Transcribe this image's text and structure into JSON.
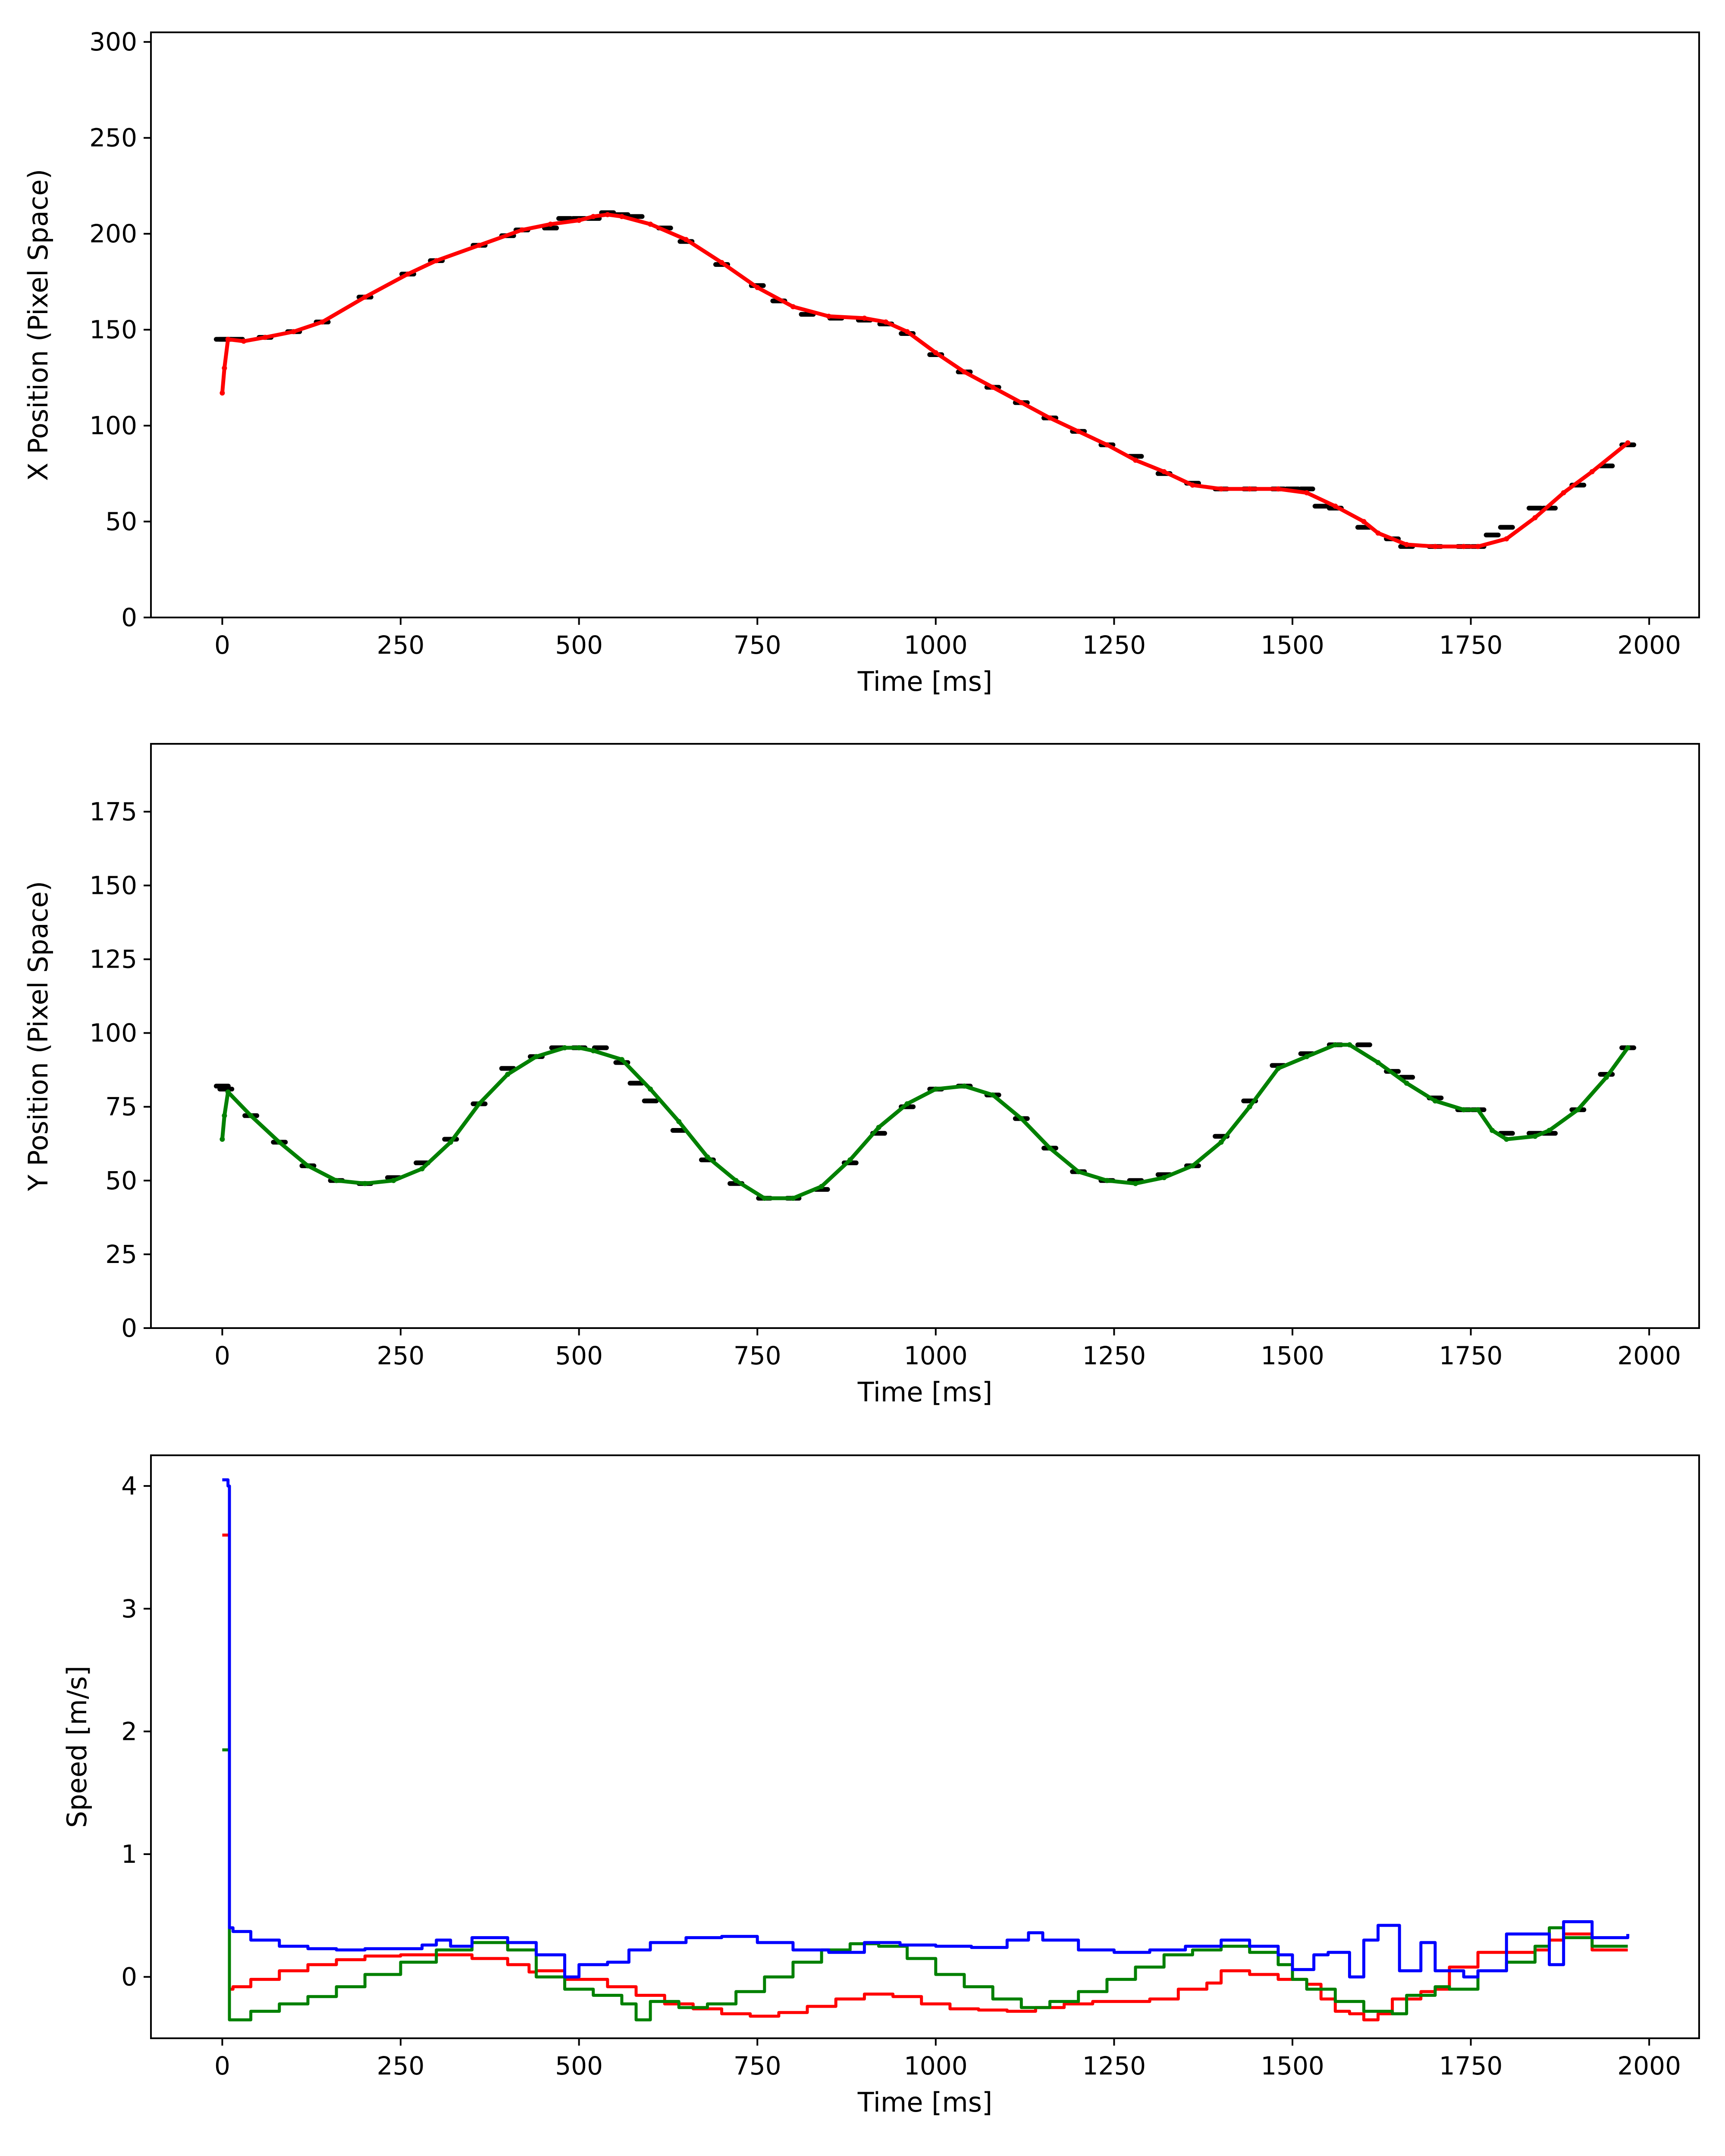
{
  "chart_data": [
    {
      "type": "line",
      "xlabel": "Time [ms]",
      "ylabel": "X Position (Pixel Space)",
      "xlim": [
        -100,
        2070
      ],
      "ylim": [
        0,
        305
      ],
      "xticks": [
        0,
        250,
        500,
        750,
        1000,
        1250,
        1500,
        1750,
        2000
      ],
      "yticks": [
        0,
        50,
        100,
        150,
        200,
        250,
        300
      ],
      "grid": false,
      "series": [
        {
          "color": "#000000",
          "style": "markers",
          "x": [
            0,
            5,
            20,
            60,
            100,
            140,
            200,
            260,
            300,
            360,
            400,
            420,
            460,
            480,
            500,
            520,
            540,
            560,
            580,
            620,
            650,
            700,
            750,
            780,
            820,
            860,
            900,
            930,
            960,
            1000,
            1040,
            1080,
            1120,
            1160,
            1200,
            1240,
            1280,
            1320,
            1360,
            1400,
            1440,
            1480,
            1500,
            1520,
            1540,
            1560,
            1600,
            1640,
            1660,
            1700,
            1740,
            1760,
            1780,
            1800,
            1840,
            1860,
            1900,
            1940,
            1970
          ],
          "y": [
            145,
            145,
            145,
            146,
            149,
            154,
            167,
            179,
            186,
            194,
            199,
            202,
            203,
            208,
            208,
            208,
            211,
            210,
            209,
            203,
            196,
            184,
            173,
            165,
            158,
            156,
            155,
            153,
            148,
            137,
            128,
            120,
            112,
            104,
            97,
            90,
            84,
            75,
            70,
            67,
            67,
            67,
            67,
            67,
            58,
            57,
            47,
            41,
            37,
            37,
            37,
            37,
            43,
            47,
            57,
            57,
            69,
            79,
            90
          ]
        },
        {
          "color": "#ff0000",
          "style": "line+markers",
          "x": [
            0,
            3,
            8,
            30,
            60,
            100,
            140,
            200,
            260,
            300,
            360,
            420,
            460,
            500,
            520,
            540,
            560,
            600,
            650,
            700,
            750,
            800,
            850,
            900,
            930,
            960,
            1000,
            1040,
            1080,
            1120,
            1160,
            1200,
            1240,
            1280,
            1320,
            1360,
            1400,
            1440,
            1480,
            1520,
            1560,
            1600,
            1620,
            1660,
            1700,
            1740,
            1760,
            1800,
            1840,
            1880,
            1920,
            1970
          ],
          "y": [
            117,
            130,
            145,
            144,
            146,
            149,
            154,
            167,
            179,
            186,
            194,
            202,
            205,
            207,
            209,
            210,
            209,
            205,
            197,
            185,
            172,
            162,
            157,
            156,
            154,
            149,
            138,
            128,
            120,
            112,
            104,
            97,
            90,
            82,
            76,
            69,
            67,
            67,
            67,
            65,
            58,
            50,
            44,
            38,
            37,
            37,
            37,
            41,
            52,
            65,
            76,
            91
          ]
        }
      ]
    },
    {
      "type": "line",
      "xlabel": "Time [ms]",
      "ylabel": "Y Position (Pixel Space)",
      "xlim": [
        -100,
        2070
      ],
      "ylim": [
        0,
        198
      ],
      "xticks": [
        0,
        250,
        500,
        750,
        1000,
        1250,
        1500,
        1750,
        2000
      ],
      "yticks": [
        0,
        25,
        50,
        75,
        100,
        125,
        150,
        175
      ],
      "grid": false,
      "series": [
        {
          "color": "#000000",
          "style": "markers",
          "x": [
            0,
            5,
            40,
            80,
            120,
            160,
            200,
            240,
            280,
            320,
            360,
            400,
            440,
            470,
            500,
            530,
            560,
            580,
            600,
            640,
            680,
            720,
            760,
            800,
            840,
            880,
            920,
            960,
            1000,
            1040,
            1080,
            1120,
            1160,
            1200,
            1240,
            1280,
            1320,
            1360,
            1400,
            1440,
            1480,
            1520,
            1560,
            1600,
            1640,
            1660,
            1700,
            1740,
            1760,
            1800,
            1840,
            1860,
            1900,
            1940,
            1970
          ],
          "y": [
            82,
            81,
            72,
            63,
            55,
            50,
            49,
            51,
            56,
            64,
            76,
            88,
            92,
            95,
            95,
            95,
            90,
            83,
            77,
            67,
            57,
            49,
            44,
            44,
            47,
            56,
            66,
            75,
            81,
            82,
            79,
            71,
            61,
            53,
            50,
            50,
            52,
            55,
            65,
            77,
            89,
            93,
            96,
            96,
            87,
            85,
            78,
            74,
            74,
            66,
            66,
            66,
            74,
            86,
            95
          ]
        },
        {
          "color": "#008000",
          "style": "line+markers",
          "x": [
            0,
            3,
            8,
            40,
            80,
            120,
            160,
            200,
            240,
            280,
            320,
            360,
            400,
            440,
            480,
            500,
            520,
            560,
            600,
            640,
            680,
            720,
            760,
            800,
            840,
            880,
            920,
            960,
            1000,
            1040,
            1080,
            1120,
            1160,
            1200,
            1240,
            1280,
            1320,
            1360,
            1400,
            1440,
            1480,
            1520,
            1560,
            1580,
            1620,
            1660,
            1700,
            1740,
            1760,
            1780,
            1800,
            1840,
            1860,
            1900,
            1940,
            1970
          ],
          "y": [
            64,
            72,
            80,
            72,
            63,
            55,
            50,
            49,
            50,
            54,
            63,
            76,
            86,
            92,
            95,
            95,
            94,
            91,
            81,
            70,
            58,
            50,
            44,
            44,
            48,
            57,
            68,
            76,
            81,
            82,
            79,
            71,
            61,
            53,
            50,
            49,
            51,
            55,
            63,
            75,
            88,
            92,
            96,
            96,
            90,
            83,
            77,
            74,
            74,
            67,
            64,
            65,
            67,
            74,
            85,
            95
          ]
        }
      ]
    },
    {
      "type": "line",
      "xlabel": "Time [ms]",
      "ylabel": "Speed [m/s]",
      "xlim": [
        -100,
        2070
      ],
      "ylim": [
        -0.5,
        4.25
      ],
      "xticks": [
        0,
        250,
        500,
        750,
        1000,
        1250,
        1500,
        1750,
        2000
      ],
      "yticks": [
        0,
        1,
        2,
        3,
        4
      ],
      "grid": false,
      "series": [
        {
          "color": "#ff0000",
          "style": "step",
          "x": [
            0,
            8,
            10,
            15,
            40,
            80,
            120,
            160,
            200,
            250,
            300,
            350,
            400,
            430,
            440,
            480,
            500,
            540,
            580,
            620,
            660,
            700,
            740,
            780,
            820,
            860,
            900,
            940,
            980,
            1020,
            1060,
            1100,
            1140,
            1180,
            1220,
            1260,
            1300,
            1340,
            1380,
            1400,
            1440,
            1480,
            1520,
            1540,
            1560,
            1580,
            1600,
            1620,
            1640,
            1680,
            1700,
            1720,
            1760,
            1800,
            1840,
            1860,
            1880,
            1920,
            1970
          ],
          "y": [
            3.6,
            3.6,
            -0.1,
            -0.08,
            -0.02,
            0.05,
            0.1,
            0.14,
            0.17,
            0.18,
            0.18,
            0.15,
            0.1,
            0.04,
            0.05,
            -0.02,
            -0.02,
            -0.08,
            -0.15,
            -0.22,
            -0.26,
            -0.3,
            -0.32,
            -0.29,
            -0.24,
            -0.18,
            -0.14,
            -0.16,
            -0.22,
            -0.26,
            -0.27,
            -0.28,
            -0.25,
            -0.22,
            -0.2,
            -0.2,
            -0.18,
            -0.1,
            -0.05,
            0.05,
            0.02,
            -0.02,
            -0.06,
            -0.18,
            -0.28,
            -0.3,
            -0.35,
            -0.3,
            -0.18,
            -0.12,
            -0.1,
            0.08,
            0.2,
            0.2,
            0.22,
            0.3,
            0.35,
            0.22,
            0.22
          ]
        },
        {
          "color": "#008000",
          "style": "step",
          "x": [
            0,
            8,
            10,
            20,
            40,
            80,
            120,
            160,
            200,
            250,
            300,
            350,
            400,
            440,
            480,
            520,
            560,
            580,
            600,
            640,
            680,
            720,
            760,
            800,
            840,
            880,
            920,
            960,
            1000,
            1040,
            1080,
            1120,
            1160,
            1200,
            1240,
            1280,
            1320,
            1360,
            1400,
            1440,
            1480,
            1500,
            1520,
            1560,
            1600,
            1640,
            1660,
            1700,
            1720,
            1760,
            1800,
            1840,
            1860,
            1880,
            1920,
            1970
          ],
          "y": [
            1.85,
            1.85,
            -0.35,
            -0.35,
            -0.28,
            -0.22,
            -0.16,
            -0.08,
            0.02,
            0.12,
            0.22,
            0.28,
            0.22,
            0.0,
            -0.1,
            -0.15,
            -0.22,
            -0.35,
            -0.2,
            -0.25,
            -0.22,
            -0.12,
            0.0,
            0.12,
            0.22,
            0.27,
            0.25,
            0.15,
            0.02,
            -0.08,
            -0.18,
            -0.25,
            -0.2,
            -0.12,
            -0.02,
            0.08,
            0.18,
            0.22,
            0.25,
            0.2,
            0.1,
            -0.02,
            -0.1,
            -0.2,
            -0.28,
            -0.3,
            -0.15,
            -0.08,
            -0.1,
            0.05,
            0.12,
            0.25,
            0.4,
            0.32,
            0.25,
            0.25
          ]
        },
        {
          "color": "#0000ff",
          "style": "step",
          "x": [
            0,
            6,
            8,
            10,
            15,
            40,
            80,
            120,
            160,
            200,
            250,
            280,
            300,
            320,
            350,
            400,
            440,
            480,
            500,
            540,
            570,
            600,
            650,
            700,
            750,
            800,
            850,
            900,
            950,
            1000,
            1050,
            1100,
            1130,
            1150,
            1200,
            1250,
            1300,
            1350,
            1400,
            1440,
            1480,
            1500,
            1530,
            1550,
            1580,
            1600,
            1620,
            1650,
            1680,
            1700,
            1740,
            1760,
            1800,
            1840,
            1860,
            1880,
            1920,
            1970
          ],
          "y": [
            4.05,
            4.05,
            4.0,
            0.4,
            0.37,
            0.3,
            0.25,
            0.23,
            0.22,
            0.23,
            0.23,
            0.26,
            0.3,
            0.25,
            0.32,
            0.28,
            0.18,
            0.0,
            0.1,
            0.12,
            0.22,
            0.28,
            0.32,
            0.33,
            0.28,
            0.22,
            0.2,
            0.28,
            0.26,
            0.25,
            0.24,
            0.3,
            0.36,
            0.3,
            0.22,
            0.2,
            0.22,
            0.25,
            0.3,
            0.25,
            0.18,
            0.06,
            0.18,
            0.2,
            0.0,
            0.3,
            0.42,
            0.05,
            0.28,
            0.05,
            0.0,
            0.05,
            0.35,
            0.35,
            0.1,
            0.45,
            0.32,
            0.35
          ]
        }
      ]
    }
  ]
}
